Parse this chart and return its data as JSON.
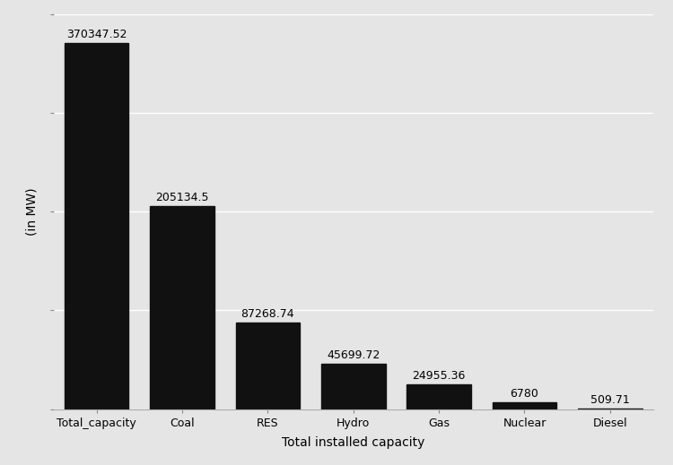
{
  "categories": [
    "Total_capacity",
    "Coal",
    "RES",
    "Hydro",
    "Gas",
    "Nuclear",
    "Diesel"
  ],
  "values": [
    370347.52,
    205134.5,
    87268.74,
    45699.72,
    24955.36,
    6780.0,
    509.71
  ],
  "bar_color": "#111111",
  "background_color": "#e5e5e5",
  "grid_color": "#ffffff",
  "xlabel": "Total installed capacity",
  "ylabel": "(in MW)",
  "ylim": [
    0,
    400000
  ],
  "ytick_positions": [
    0,
    100000,
    200000,
    300000,
    400000
  ],
  "label_fontsize": 9,
  "axis_label_fontsize": 10,
  "tick_fontsize": 9,
  "bar_width": 0.75
}
